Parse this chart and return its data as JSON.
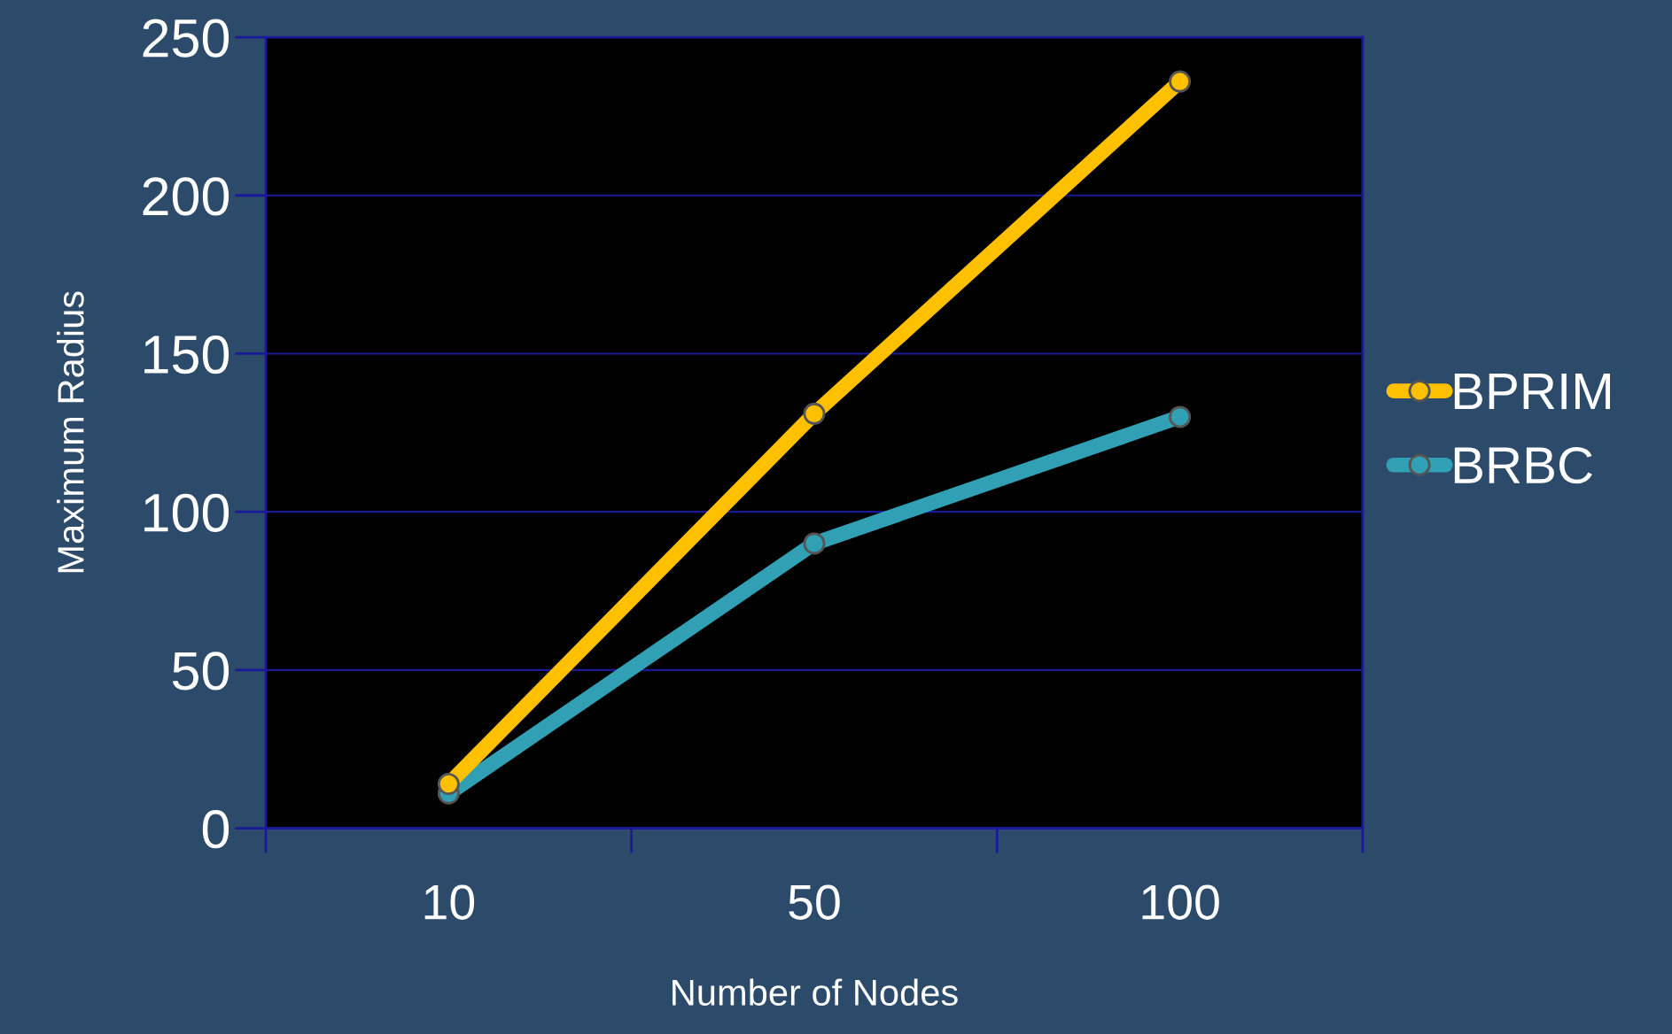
{
  "chart_data": {
    "type": "line",
    "xlabel": "Number of Nodes",
    "ylabel": "Maximum Radius",
    "categories": [
      "10",
      "50",
      "100"
    ],
    "series": [
      {
        "name": "BPRIM",
        "color": "#ffc000",
        "values": [
          14,
          131,
          236
        ]
      },
      {
        "name": "BRBC",
        "color": "#31a0b4",
        "values": [
          11,
          90,
          130
        ]
      }
    ],
    "ylim": [
      0,
      250
    ],
    "yticks": [
      0,
      50,
      100,
      150,
      200,
      250
    ],
    "grid": "y",
    "legend": "right",
    "marker": "circle",
    "line_style": "solid"
  }
}
